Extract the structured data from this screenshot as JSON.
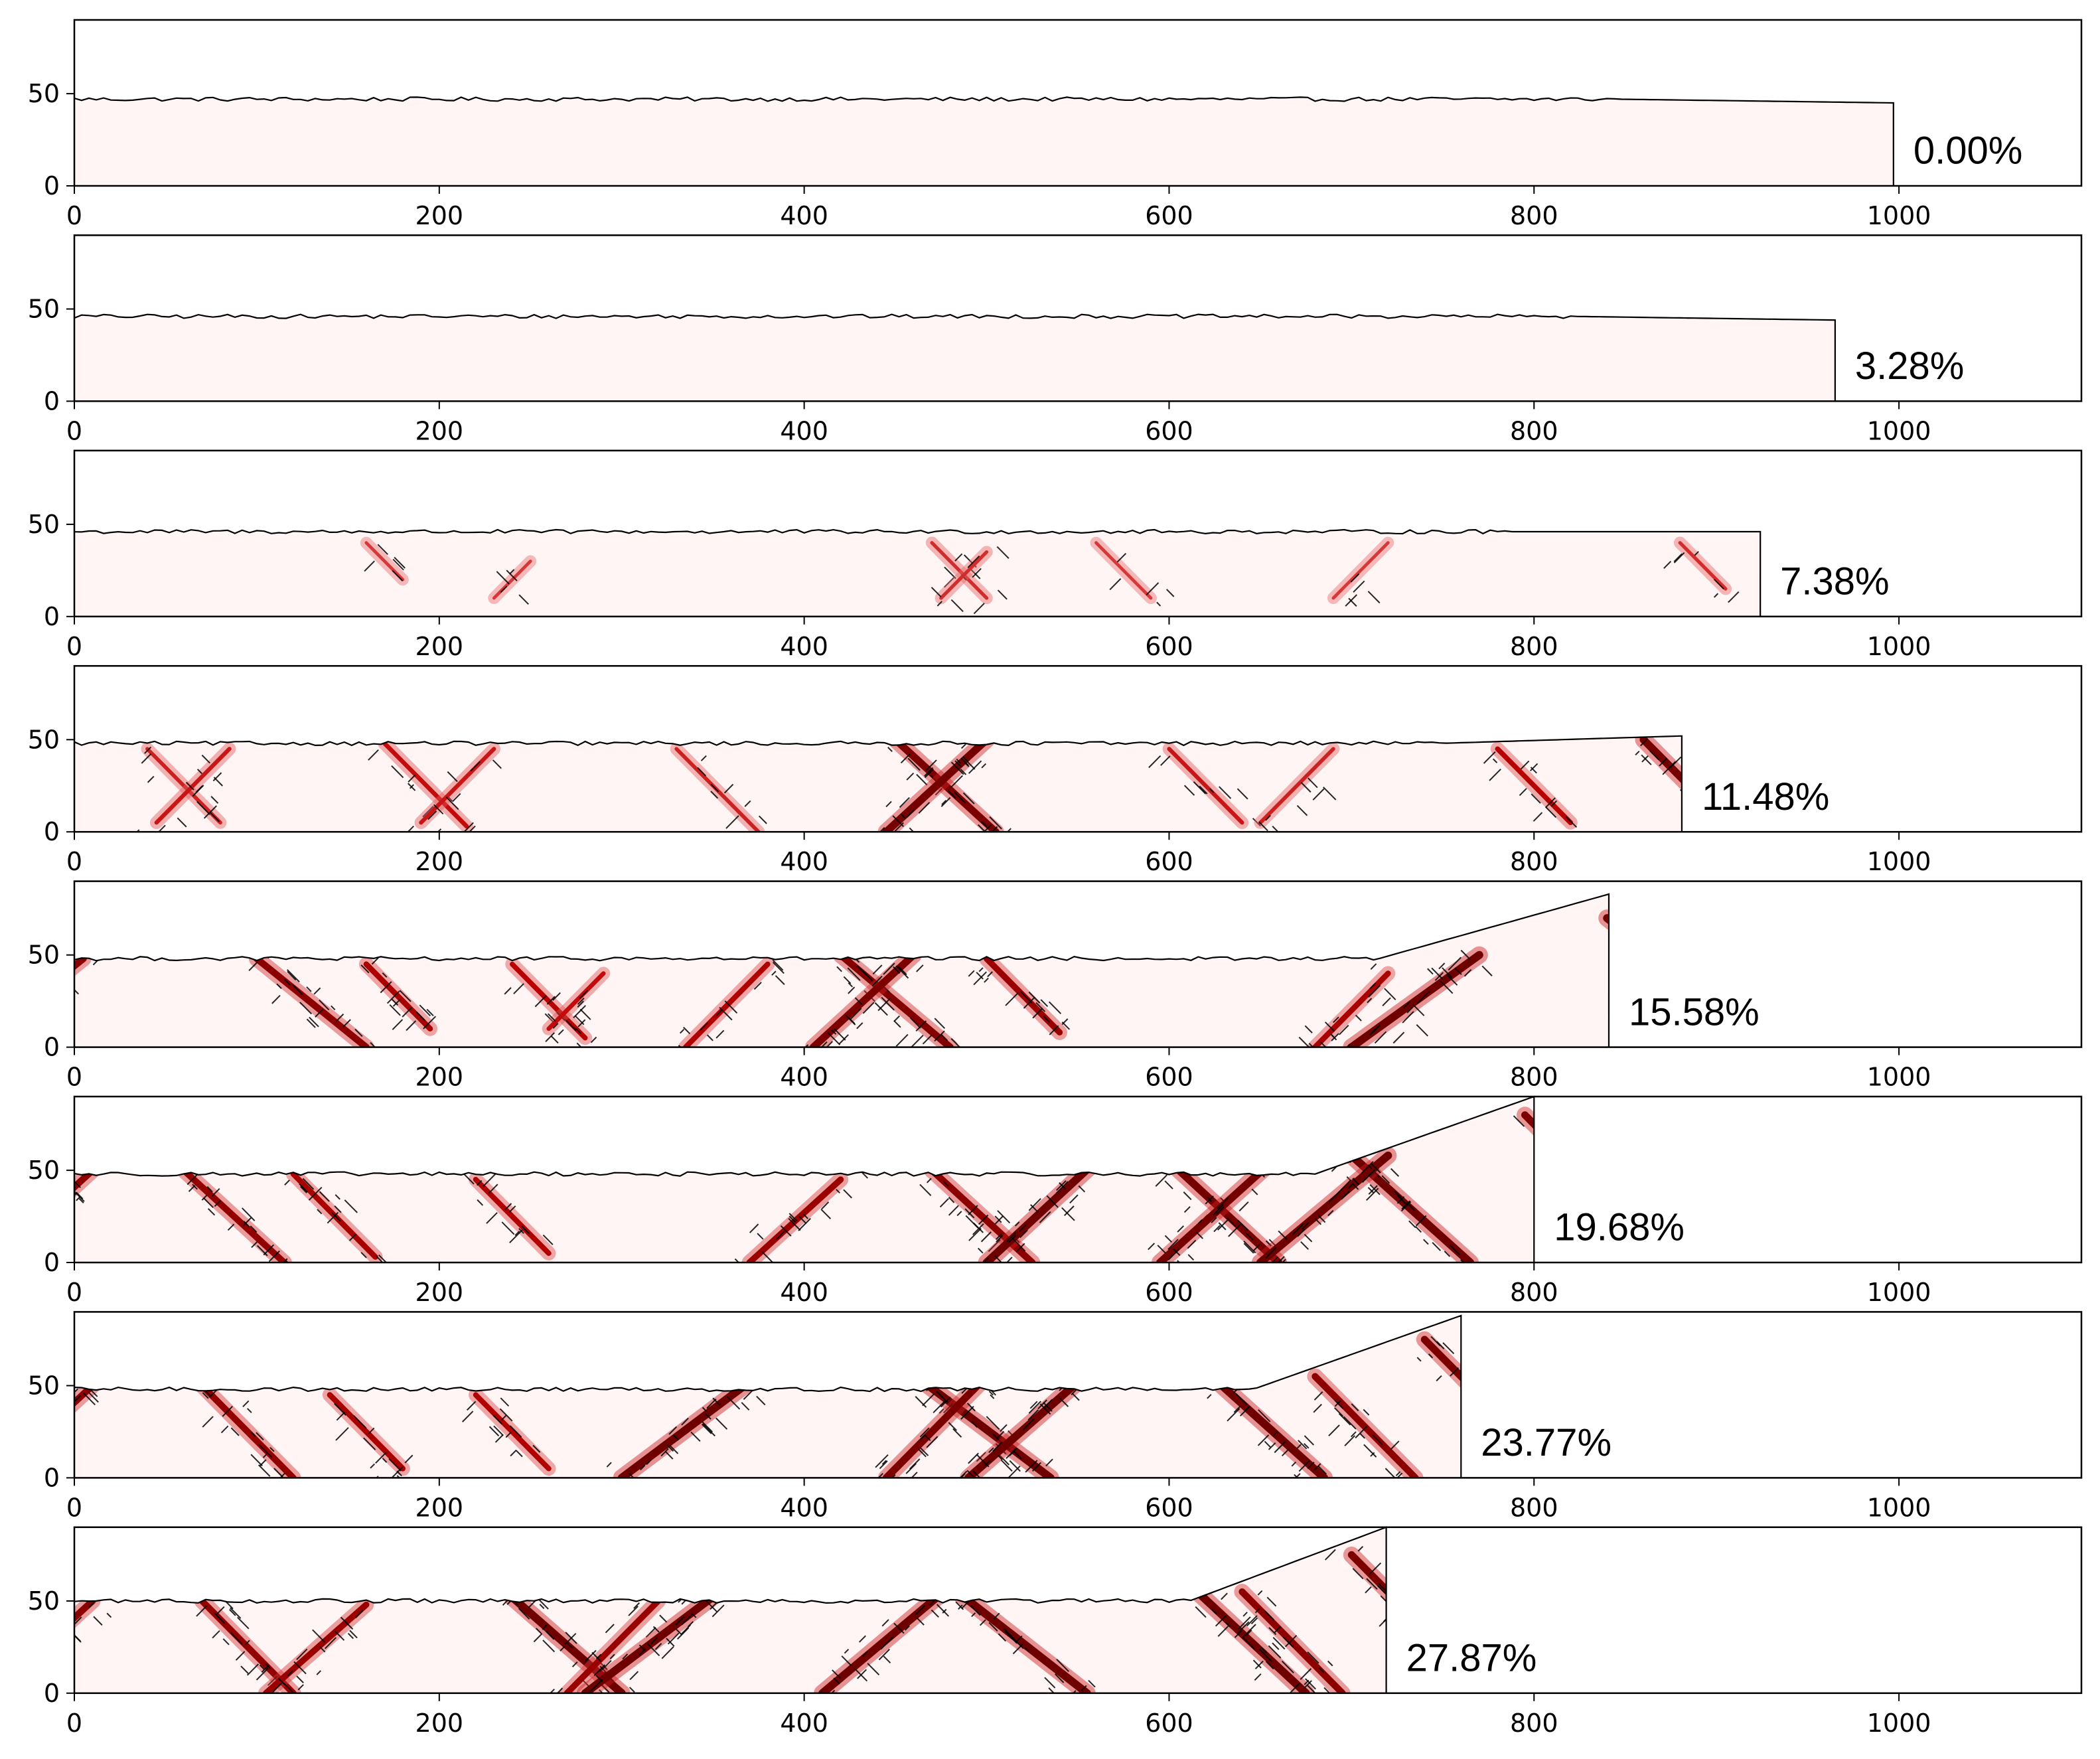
{
  "chart_data": {
    "type": "heatmap",
    "xlim": [
      0,
      1100
    ],
    "ylim": [
      0,
      90
    ],
    "x_ticks": [
      0,
      200,
      400,
      600,
      800,
      1000
    ],
    "y_ticks": [
      0,
      50
    ],
    "grid": false,
    "colormap": [
      "#fff5f5",
      "#f08080",
      "#c00000",
      "#6e0000",
      "#000000"
    ],
    "panels": [
      {
        "label": "0.00%",
        "specimen_length": 997,
        "surface_height": 47,
        "end_height": 45,
        "damage_features": []
      },
      {
        "label": "3.28%",
        "specimen_length": 965,
        "surface_height": 46,
        "end_height": 44,
        "damage_features": []
      },
      {
        "label": "7.38%",
        "specimen_length": 924,
        "surface_height": 46,
        "end_height": 46,
        "damage_features": [
          {
            "x": 160,
            "y": 40,
            "len": 20,
            "dir": 1,
            "intensity": 0.2
          },
          {
            "x": 250,
            "y": 30,
            "len": 20,
            "dir": -1,
            "intensity": 0.2
          },
          {
            "x": 470,
            "y": 40,
            "len": 30,
            "dir": 1,
            "intensity": 0.25
          },
          {
            "x": 500,
            "y": 35,
            "len": 25,
            "dir": -1,
            "intensity": 0.25
          },
          {
            "x": 560,
            "y": 40,
            "len": 30,
            "dir": 1,
            "intensity": 0.2
          },
          {
            "x": 720,
            "y": 40,
            "len": 30,
            "dir": -1,
            "intensity": 0.2
          },
          {
            "x": 880,
            "y": 40,
            "len": 25,
            "dir": 1,
            "intensity": 0.25
          }
        ]
      },
      {
        "label": "11.48%",
        "specimen_length": 881,
        "surface_height": 48,
        "end_height": 52,
        "damage_features": [
          {
            "x": 40,
            "y": 45,
            "len": 40,
            "dir": 1,
            "intensity": 0.3
          },
          {
            "x": 85,
            "y": 45,
            "len": 40,
            "dir": -1,
            "intensity": 0.35
          },
          {
            "x": 170,
            "y": 48,
            "len": 45,
            "dir": 1,
            "intensity": 0.4
          },
          {
            "x": 230,
            "y": 45,
            "len": 40,
            "dir": -1,
            "intensity": 0.35
          },
          {
            "x": 330,
            "y": 45,
            "len": 45,
            "dir": 1,
            "intensity": 0.3
          },
          {
            "x": 450,
            "y": 50,
            "len": 55,
            "dir": 1,
            "intensity": 0.9
          },
          {
            "x": 500,
            "y": 50,
            "len": 55,
            "dir": -1,
            "intensity": 0.95
          },
          {
            "x": 600,
            "y": 45,
            "len": 40,
            "dir": 1,
            "intensity": 0.35
          },
          {
            "x": 690,
            "y": 45,
            "len": 40,
            "dir": -1,
            "intensity": 0.3
          },
          {
            "x": 780,
            "y": 45,
            "len": 40,
            "dir": 1,
            "intensity": 0.5
          },
          {
            "x": 860,
            "y": 50,
            "len": 50,
            "dir": 1,
            "intensity": 0.95
          }
        ]
      },
      {
        "label": "15.58%",
        "specimen_length": 841,
        "surface_height": 48,
        "end_height": 83,
        "damage_features": [
          {
            "x": 5,
            "y": 48,
            "len": 60,
            "dir": -1,
            "intensity": 0.8
          },
          {
            "x": 100,
            "y": 48,
            "len": 60,
            "dir": 1,
            "intensity": 0.8
          },
          {
            "x": 160,
            "y": 45,
            "len": 35,
            "dir": 1,
            "intensity": 0.6
          },
          {
            "x": 240,
            "y": 45,
            "len": 40,
            "dir": 1,
            "intensity": 0.5
          },
          {
            "x": 290,
            "y": 40,
            "len": 30,
            "dir": -1,
            "intensity": 0.4
          },
          {
            "x": 380,
            "y": 45,
            "len": 45,
            "dir": -1,
            "intensity": 0.55
          },
          {
            "x": 420,
            "y": 50,
            "len": 60,
            "dir": 1,
            "intensity": 0.85
          },
          {
            "x": 460,
            "y": 50,
            "len": 55,
            "dir": -1,
            "intensity": 0.9
          },
          {
            "x": 500,
            "y": 48,
            "len": 40,
            "dir": 1,
            "intensity": 0.7
          },
          {
            "x": 720,
            "y": 40,
            "len": 40,
            "dir": -1,
            "intensity": 0.6
          },
          {
            "x": 770,
            "y": 50,
            "len": 70,
            "dir": -1,
            "intensity": 1.0
          },
          {
            "x": 840,
            "y": 70,
            "len": 90,
            "dir": 1,
            "intensity": 1.0
          }
        ]
      },
      {
        "label": "19.68%",
        "specimen_length": 800,
        "surface_height": 48,
        "end_height": 90,
        "damage_features": [
          {
            "x": 10,
            "y": 50,
            "len": 55,
            "dir": -1,
            "intensity": 0.8
          },
          {
            "x": 60,
            "y": 50,
            "len": 55,
            "dir": 1,
            "intensity": 0.75
          },
          {
            "x": 120,
            "y": 48,
            "len": 45,
            "dir": 1,
            "intensity": 0.6
          },
          {
            "x": 220,
            "y": 45,
            "len": 40,
            "dir": 1,
            "intensity": 0.55
          },
          {
            "x": 420,
            "y": 45,
            "len": 50,
            "dir": -1,
            "intensity": 0.7
          },
          {
            "x": 470,
            "y": 50,
            "len": 55,
            "dir": 1,
            "intensity": 0.8
          },
          {
            "x": 560,
            "y": 55,
            "len": 60,
            "dir": -1,
            "intensity": 1.0
          },
          {
            "x": 600,
            "y": 55,
            "len": 60,
            "dir": 1,
            "intensity": 0.95
          },
          {
            "x": 660,
            "y": 58,
            "len": 65,
            "dir": -1,
            "intensity": 0.95
          },
          {
            "x": 700,
            "y": 58,
            "len": 65,
            "dir": 1,
            "intensity": 1.0
          },
          {
            "x": 720,
            "y": 58,
            "len": 70,
            "dir": -1,
            "intensity": 1.0
          },
          {
            "x": 795,
            "y": 80,
            "len": 80,
            "dir": 1,
            "intensity": 0.9
          }
        ]
      },
      {
        "label": "23.77%",
        "specimen_length": 760,
        "surface_height": 48,
        "end_height": 88,
        "damage_features": [
          {
            "x": 10,
            "y": 50,
            "len": 55,
            "dir": -1,
            "intensity": 0.8
          },
          {
            "x": 70,
            "y": 50,
            "len": 50,
            "dir": 1,
            "intensity": 0.75
          },
          {
            "x": 140,
            "y": 45,
            "len": 40,
            "dir": 1,
            "intensity": 0.6
          },
          {
            "x": 220,
            "y": 45,
            "len": 40,
            "dir": 1,
            "intensity": 0.55
          },
          {
            "x": 370,
            "y": 52,
            "len": 70,
            "dir": -1,
            "intensity": 1.0
          },
          {
            "x": 460,
            "y": 56,
            "len": 75,
            "dir": 1,
            "intensity": 1.0
          },
          {
            "x": 500,
            "y": 55,
            "len": 55,
            "dir": -1,
            "intensity": 0.9
          },
          {
            "x": 550,
            "y": 52,
            "len": 60,
            "dir": -1,
            "intensity": 1.0
          },
          {
            "x": 620,
            "y": 58,
            "len": 65,
            "dir": 1,
            "intensity": 1.0
          },
          {
            "x": 680,
            "y": 55,
            "len": 55,
            "dir": 1,
            "intensity": 0.8
          },
          {
            "x": 740,
            "y": 75,
            "len": 70,
            "dir": 1,
            "intensity": 0.9
          }
        ]
      },
      {
        "label": "27.87%",
        "specimen_length": 719,
        "surface_height": 50,
        "end_height": 90,
        "damage_features": [
          {
            "x": 10,
            "y": 50,
            "len": 55,
            "dir": -1,
            "intensity": 0.8
          },
          {
            "x": 70,
            "y": 50,
            "len": 50,
            "dir": 1,
            "intensity": 0.75
          },
          {
            "x": 160,
            "y": 48,
            "len": 55,
            "dir": -1,
            "intensity": 0.7
          },
          {
            "x": 240,
            "y": 52,
            "len": 60,
            "dir": 1,
            "intensity": 1.0
          },
          {
            "x": 320,
            "y": 50,
            "len": 50,
            "dir": -1,
            "intensity": 0.7
          },
          {
            "x": 355,
            "y": 56,
            "len": 75,
            "dir": -1,
            "intensity": 1.0
          },
          {
            "x": 480,
            "y": 58,
            "len": 75,
            "dir": 1,
            "intensity": 1.0
          },
          {
            "x": 480,
            "y": 58,
            "len": 70,
            "dir": -1,
            "intensity": 1.0
          },
          {
            "x": 610,
            "y": 60,
            "len": 65,
            "dir": 1,
            "intensity": 1.0
          },
          {
            "x": 640,
            "y": 55,
            "len": 55,
            "dir": 1,
            "intensity": 0.8
          },
          {
            "x": 700,
            "y": 75,
            "len": 70,
            "dir": 1,
            "intensity": 0.9
          }
        ]
      }
    ]
  }
}
